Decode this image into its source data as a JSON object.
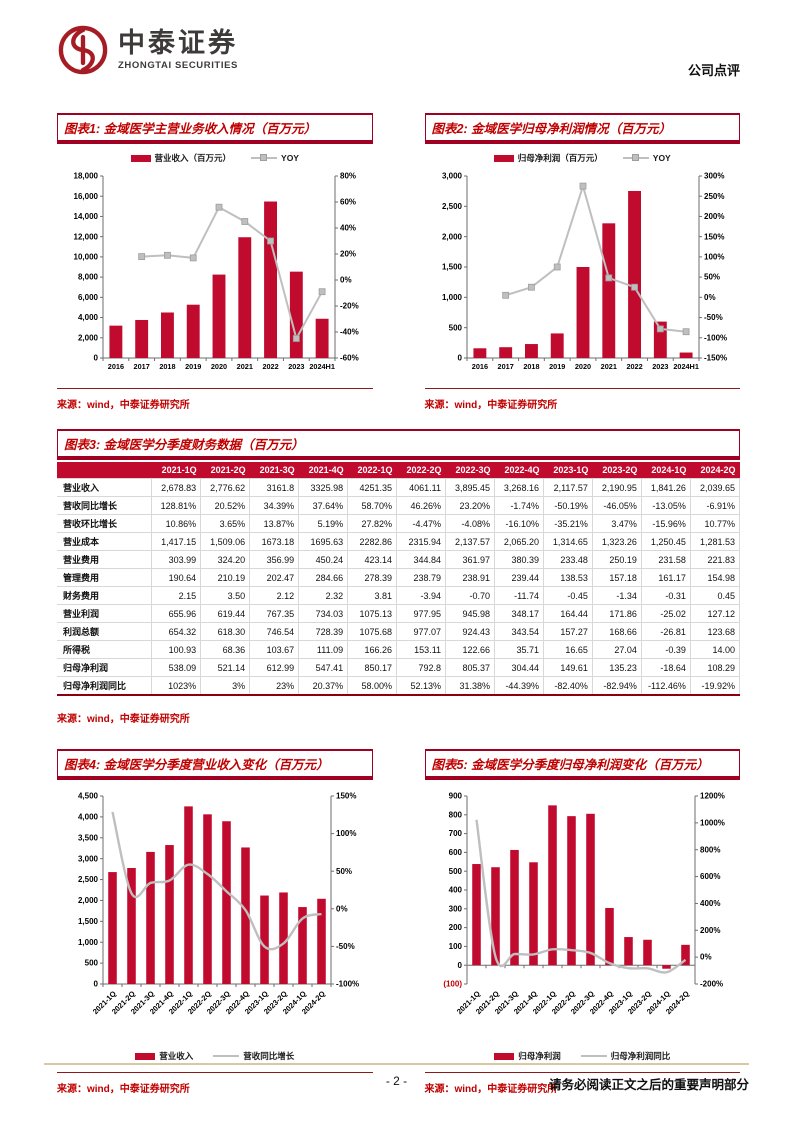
{
  "header": {
    "brand_cn": "中泰证券",
    "brand_en": "ZHONGTAI SECURITIES",
    "doc_type": "公司点评"
  },
  "colors": {
    "bar_red": "#C00A2E",
    "line_gray": "#BFBFBF",
    "title_red": "#C00000",
    "table_header_bg": "#C00A2E",
    "source_red": "#C00000",
    "border_red": "#A00021",
    "footer_line_tan": "#D8C9A3",
    "axis_gray": "#6E6E6E"
  },
  "chart_data": [
    {
      "id": "figure-1",
      "type": "combo-bar-line",
      "title": "图表1: 金域医学主营业务收入情况（百万元）",
      "source": "来源：wind，中泰证券研究所",
      "categories": [
        "2016",
        "2017",
        "2018",
        "2019",
        "2020",
        "2021",
        "2022",
        "2023",
        "2024H1"
      ],
      "series": [
        {
          "name": "营业收入（百万元）",
          "type": "bar",
          "axis": "left",
          "values": [
            3200,
            3760,
            4500,
            5270,
            8250,
            11943,
            15476,
            8540,
            3881
          ]
        },
        {
          "name": "YOY",
          "type": "line",
          "axis": "right",
          "markers": true,
          "values": [
            null,
            18,
            19,
            17,
            56,
            45,
            30,
            -45,
            -9
          ]
        }
      ],
      "left_axis": {
        "min": 0,
        "max": 18000,
        "ticks": [
          [
            0,
            "0"
          ],
          [
            2000,
            "2,000"
          ],
          [
            4000,
            "4,000"
          ],
          [
            6000,
            "6,000"
          ],
          [
            8000,
            "8,000"
          ],
          [
            10000,
            "10,000"
          ],
          [
            12000,
            "12,000"
          ],
          [
            14000,
            "14,000"
          ],
          [
            16000,
            "16,000"
          ],
          [
            18000,
            "18,000"
          ]
        ]
      },
      "right_axis": {
        "min": -60,
        "max": 80,
        "ticks": [
          [
            -60,
            "-60%"
          ],
          [
            -40,
            "-40%"
          ],
          [
            -20,
            "-20%"
          ],
          [
            0,
            "0%"
          ],
          [
            20,
            "20%"
          ],
          [
            40,
            "40%"
          ],
          [
            60,
            "60%"
          ],
          [
            80,
            "80%"
          ]
        ]
      },
      "legend_position": "top",
      "grid": false
    },
    {
      "id": "figure-2",
      "type": "combo-bar-line",
      "title": "图表2: 金域医学归母净利润情况（百万元）",
      "source": "来源：wind，中泰证券研究所",
      "categories": [
        "2016",
        "2017",
        "2018",
        "2019",
        "2020",
        "2021",
        "2022",
        "2023",
        "2024H1"
      ],
      "series": [
        {
          "name": "归母净利润（百万元）",
          "type": "bar",
          "axis": "left",
          "values": [
            160,
            178,
            230,
            405,
            1500,
            2220,
            2753,
            600,
            90
          ]
        },
        {
          "name": "YOY",
          "type": "line",
          "axis": "right",
          "markers": true,
          "values": [
            null,
            5,
            25,
            75,
            275,
            48,
            25,
            -78,
            -85
          ]
        }
      ],
      "left_axis": {
        "min": 0,
        "max": 3000,
        "ticks": [
          [
            0,
            "0"
          ],
          [
            500,
            "500"
          ],
          [
            1000,
            "1,000"
          ],
          [
            1500,
            "1,500"
          ],
          [
            2000,
            "2,000"
          ],
          [
            2500,
            "2,500"
          ],
          [
            3000,
            "3,000"
          ]
        ]
      },
      "right_axis": {
        "min": -150,
        "max": 300,
        "ticks": [
          [
            -150,
            "-150%"
          ],
          [
            -100,
            "-100%"
          ],
          [
            -50,
            "-50%"
          ],
          [
            0,
            "0%"
          ],
          [
            50,
            "50%"
          ],
          [
            100,
            "100%"
          ],
          [
            150,
            "150%"
          ],
          [
            200,
            "200%"
          ],
          [
            250,
            "250%"
          ],
          [
            300,
            "300%"
          ]
        ]
      },
      "legend_position": "top",
      "grid": false
    },
    {
      "id": "figure-4",
      "type": "combo-bar-line",
      "title": "图表4: 金域医学分季度营业收入变化（百万元）",
      "source": "来源：wind，中泰证券研究所",
      "categories": [
        "2021-1Q",
        "2021-2Q",
        "2021-3Q",
        "2021-4Q",
        "2022-1Q",
        "2022-2Q",
        "2022-3Q",
        "2022-4Q",
        "2023-1Q",
        "2023-2Q",
        "2024-1Q",
        "2024-2Q"
      ],
      "series": [
        {
          "name": "营业收入",
          "type": "bar",
          "axis": "left",
          "values": [
            2678.83,
            2776.62,
            3161.8,
            3325.98,
            4251.35,
            4061.11,
            3895.45,
            3268.16,
            2117.57,
            2190.95,
            1841.26,
            2039.65
          ]
        },
        {
          "name": "营收同比增长",
          "type": "line",
          "axis": "right",
          "markers": false,
          "values": [
            128.81,
            20.52,
            34.39,
            37.64,
            58.7,
            46.26,
            23.2,
            -1.74,
            -50.19,
            -46.05,
            -13.05,
            -6.91
          ]
        }
      ],
      "left_axis": {
        "min": 0,
        "max": 4500,
        "ticks": [
          [
            0,
            "0"
          ],
          [
            500,
            "500"
          ],
          [
            1000,
            "1,000"
          ],
          [
            1500,
            "1,500"
          ],
          [
            2000,
            "2,000"
          ],
          [
            2500,
            "2,500"
          ],
          [
            3000,
            "3,000"
          ],
          [
            3500,
            "3,500"
          ],
          [
            4000,
            "4,000"
          ],
          [
            4500,
            "4,500"
          ]
        ]
      },
      "right_axis": {
        "min": -100,
        "max": 150,
        "ticks": [
          [
            -100,
            "-100%"
          ],
          [
            -50,
            "-50%"
          ],
          [
            0,
            "0%"
          ],
          [
            50,
            "50%"
          ],
          [
            100,
            "100%"
          ],
          [
            150,
            "150%"
          ]
        ]
      },
      "legend_position": "bottom",
      "x_label_rotated": true,
      "grid": false
    },
    {
      "id": "figure-5",
      "type": "combo-bar-line",
      "title": "图表5: 金域医学分季度归母净利润变化（百万元）",
      "source": "来源：wind，中泰证券研究所",
      "categories": [
        "2021-1Q",
        "2021-2Q",
        "2021-3Q",
        "2021-4Q",
        "2022-1Q",
        "2022-2Q",
        "2022-3Q",
        "2022-4Q",
        "2023-1Q",
        "2023-2Q",
        "2024-1Q",
        "2024-2Q"
      ],
      "series": [
        {
          "name": "归母净利润",
          "type": "bar",
          "axis": "left",
          "values": [
            538.09,
            521.14,
            612.99,
            547.41,
            850.17,
            792.8,
            805.37,
            304.44,
            149.61,
            135.23,
            -18.64,
            108.29
          ]
        },
        {
          "name": "归母净利润同比",
          "type": "line",
          "axis": "right",
          "markers": false,
          "values": [
            1023,
            3,
            23,
            20.37,
            58.0,
            52.13,
            31.38,
            -44.39,
            -82.4,
            -82.94,
            -112.46,
            -19.92
          ]
        }
      ],
      "left_axis": {
        "min": -100,
        "max": 900,
        "ticks": [
          [
            -100,
            "(100)"
          ],
          [
            0,
            "0"
          ],
          [
            100,
            "100"
          ],
          [
            200,
            "200"
          ],
          [
            300,
            "300"
          ],
          [
            400,
            "400"
          ],
          [
            500,
            "500"
          ],
          [
            600,
            "600"
          ],
          [
            700,
            "700"
          ],
          [
            800,
            "800"
          ],
          [
            900,
            "900"
          ]
        ]
      },
      "right_axis": {
        "min": -200,
        "max": 1200,
        "ticks": [
          [
            -200,
            "-200%"
          ],
          [
            0,
            "0%"
          ],
          [
            200,
            "200%"
          ],
          [
            400,
            "400%"
          ],
          [
            600,
            "600%"
          ],
          [
            800,
            "800%"
          ],
          [
            1000,
            "1000%"
          ],
          [
            1200,
            "1200%"
          ]
        ]
      },
      "legend_position": "bottom",
      "x_label_rotated": true,
      "grid": false
    }
  ],
  "table": {
    "title": "图表3: 金域医学分季度财务数据（百万元）",
    "source": "来源：wind，中泰证券研究所",
    "columns": [
      "",
      "2021-1Q",
      "2021-2Q",
      "2021-3Q",
      "2021-4Q",
      "2022-1Q",
      "2022-2Q",
      "2022-3Q",
      "2022-4Q",
      "2023-1Q",
      "2023-2Q",
      "2024-1Q",
      "2024-2Q"
    ],
    "rows": [
      {
        "label": "营业收入",
        "values": [
          "2,678.83",
          "2,776.62",
          "3161.8",
          "3325.98",
          "4251.35",
          "4061.11",
          "3,895.45",
          "3,268.16",
          "2,117.57",
          "2,190.95",
          "1,841.26",
          "2,039.65"
        ]
      },
      {
        "label": "营收同比增长",
        "values": [
          "128.81%",
          "20.52%",
          "34.39%",
          "37.64%",
          "58.70%",
          "46.26%",
          "23.20%",
          "-1.74%",
          "-50.19%",
          "-46.05%",
          "-13.05%",
          "-6.91%"
        ]
      },
      {
        "label": "营收环比增长",
        "values": [
          "10.86%",
          "3.65%",
          "13.87%",
          "5.19%",
          "27.82%",
          "-4.47%",
          "-4.08%",
          "-16.10%",
          "-35.21%",
          "3.47%",
          "-15.96%",
          "10.77%"
        ]
      },
      {
        "label": "营业成本",
        "values": [
          "1,417.15",
          "1,509.06",
          "1673.18",
          "1695.63",
          "2282.86",
          "2315.94",
          "2,137.57",
          "2,065.20",
          "1,314.65",
          "1,323.26",
          "1,250.45",
          "1,281.53"
        ]
      },
      {
        "label": "营业费用",
        "values": [
          "303.99",
          "324.20",
          "356.99",
          "450.24",
          "423.14",
          "344.84",
          "361.97",
          "380.39",
          "233.48",
          "250.19",
          "231.58",
          "221.83"
        ]
      },
      {
        "label": "管理费用",
        "values": [
          "190.64",
          "210.19",
          "202.47",
          "284.66",
          "278.39",
          "238.79",
          "238.91",
          "239.44",
          "138.53",
          "157.18",
          "161.17",
          "154.98"
        ]
      },
      {
        "label": "财务费用",
        "values": [
          "2.15",
          "3.50",
          "2.12",
          "2.32",
          "3.81",
          "-3.94",
          "-0.70",
          "-11.74",
          "-0.45",
          "-1.34",
          "-0.31",
          "0.45"
        ]
      },
      {
        "label": "营业利润",
        "values": [
          "655.96",
          "619.44",
          "767.35",
          "734.03",
          "1075.13",
          "977.95",
          "945.98",
          "348.17",
          "164.44",
          "171.86",
          "-25.02",
          "127.12"
        ]
      },
      {
        "label": "利润总额",
        "values": [
          "654.32",
          "618.30",
          "746.54",
          "728.39",
          "1075.68",
          "977.07",
          "924.43",
          "343.54",
          "157.27",
          "168.66",
          "-26.81",
          "123.68"
        ]
      },
      {
        "label": "所得税",
        "values": [
          "100.93",
          "68.36",
          "103.67",
          "111.09",
          "166.26",
          "153.11",
          "122.66",
          "35.71",
          "16.65",
          "27.04",
          "-0.39",
          "14.00"
        ]
      },
      {
        "label": "归母净利润",
        "values": [
          "538.09",
          "521.14",
          "612.99",
          "547.41",
          "850.17",
          "792.8",
          "805.37",
          "304.44",
          "149.61",
          "135.23",
          "-18.64",
          "108.29"
        ]
      },
      {
        "label": "归母净利润同比",
        "values": [
          "1023%",
          "3%",
          "23%",
          "20.37%",
          "58.00%",
          "52.13%",
          "31.38%",
          "-44.39%",
          "-82.40%",
          "-82.94%",
          "-112.46%",
          "-19.92%"
        ]
      }
    ]
  },
  "footer": {
    "page_number": "- 2 -",
    "disclaimer": "请务必阅读正文之后的重要声明部分"
  }
}
